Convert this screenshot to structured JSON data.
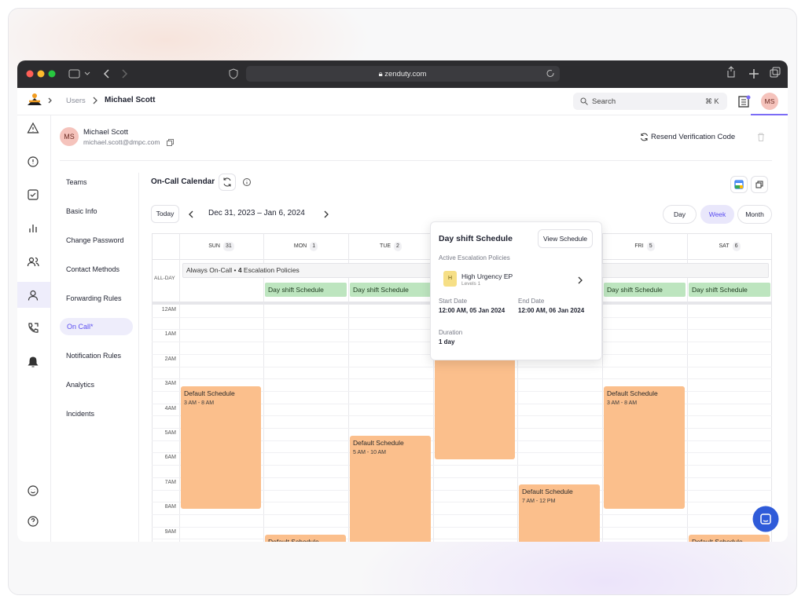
{
  "browser": {
    "url": "zenduty.com"
  },
  "header": {
    "breadcrumb": [
      "Users",
      "Michael Scott"
    ],
    "search": "Search",
    "shortcut": "⌘ K",
    "avatar": "MS"
  },
  "profile": {
    "initials": "MS",
    "name": "Michael Scott",
    "email": "michael.scott@dmpc.com",
    "resend": "Resend Verification Code"
  },
  "menu": [
    "Teams",
    "Basic Info",
    "Change Password",
    "Contact Methods",
    "Forwarding Rules",
    "On Call*",
    "Notification Rules",
    "Analytics",
    "Incidents"
  ],
  "calendar": {
    "title": "On-Call Calendar",
    "today": "Today",
    "range": "Dec 31, 2023 – Jan 6, 2024",
    "views": [
      "Day",
      "Week",
      "Month"
    ],
    "days": [
      {
        "name": "SUN",
        "date": "31"
      },
      {
        "name": "MON",
        "date": "1"
      },
      {
        "name": "TUE",
        "date": "2"
      },
      null,
      null,
      {
        "name": "FRI",
        "date": "5"
      },
      {
        "name": "SAT",
        "date": "6"
      }
    ],
    "all_day_label": "ALL-DAY",
    "always_on_call": {
      "text": "Always On-Call •",
      "count": "4",
      "suffix": "Escalation Policies"
    },
    "day_shift": [
      "Day shift Schedule",
      "Day shift Schedule",
      "Day shift Schedule",
      "Day shift Schedule"
    ],
    "hours": [
      "12AM",
      "1AM",
      "2AM",
      "3AM",
      "4AM",
      "5AM",
      "6AM",
      "7AM",
      "8AM",
      "9AM"
    ],
    "events": [
      {
        "title": "Default Schedule",
        "time": "3 AM - 8 AM"
      },
      {
        "title": "Default Schedule"
      },
      {
        "title": "Default Schedule",
        "time": "5 AM - 10 AM"
      },
      {
        "title": "Default Schedule",
        "time": "7 AM - 12 PM"
      },
      {
        "title": "Default Schedule",
        "time": "3 AM - 8 AM"
      },
      {
        "title": "Default Schedule"
      }
    ]
  },
  "popup": {
    "title": "Day shift Schedule",
    "button": "View Schedule",
    "section": "Active Escalation Policies",
    "badge": "H",
    "policy": "High Urgency EP",
    "levels": "Levels 1",
    "start_label": "Start Date",
    "start": "12:00 AM, 05 Jan 2024",
    "end_label": "End Date",
    "end": "12:00 AM, 06 Jan 2024",
    "duration_label": "Duration",
    "duration": "1 day"
  }
}
